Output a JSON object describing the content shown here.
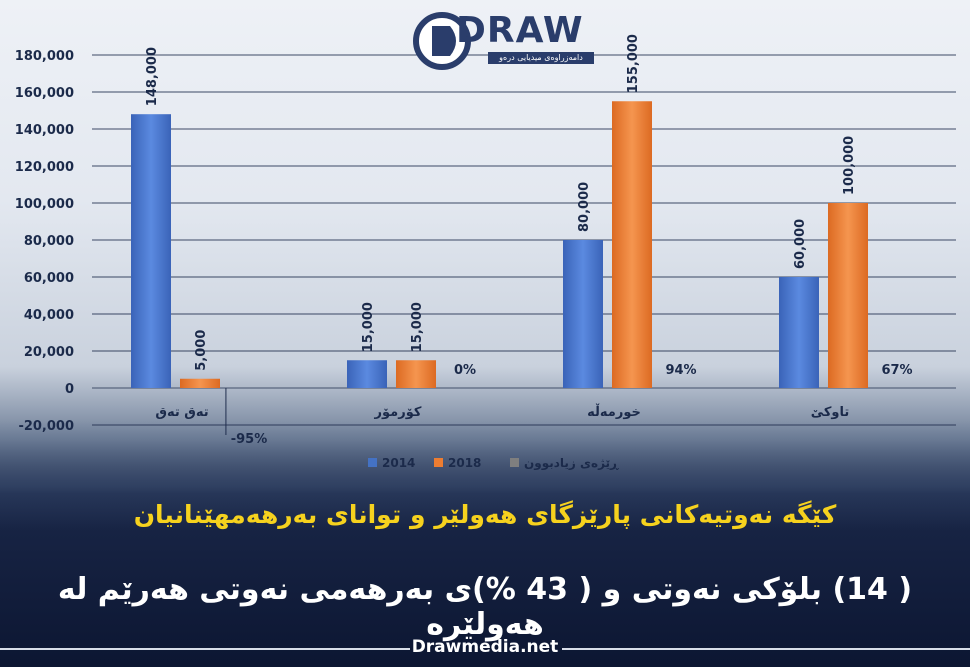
{
  "brand": {
    "logo_text": "DRAW",
    "logo_sub": "دامەزراوەی میدیایی درەو"
  },
  "headline": "کێگە نەوتیەکانی پارێزگای هەولێر و توانای بەرهەمهێنانیان",
  "subheadline": "( 14) بلۆکی نەوتی و ( 43 %)ی بەرهەمی نەوتی هەرێم لە هەولێرە",
  "footer": "Drawmedia.net",
  "colors": {
    "s2014": "#4472c4",
    "s2018": "#ed7d31",
    "s3": "#7f7f7f",
    "headline": "#f6d21e"
  },
  "chart_data": {
    "type": "bar",
    "categories": [
      "تەق تەق",
      "کۆرمۆر",
      "خورمەڵە",
      "تاوکێ"
    ],
    "series": [
      {
        "name": "2014",
        "values": [
          148000,
          15000,
          80000,
          60000
        ],
        "labels": [
          "148,000",
          "15,000",
          "80,000",
          "60,000"
        ]
      },
      {
        "name": "2018",
        "values": [
          5000,
          15000,
          155000,
          100000
        ],
        "labels": [
          "5,000",
          "15,000",
          "155,000",
          "100,000"
        ]
      },
      {
        "name": "ڕێژەی زیادبوون",
        "values": [
          -95,
          0,
          94,
          67
        ],
        "labels": [
          "-95%",
          "0%",
          "94%",
          "67%"
        ]
      }
    ],
    "ylim": [
      -20000,
      180000
    ],
    "yticks": [
      "-20,000",
      "0",
      "20,000",
      "40,000",
      "60,000",
      "80,000",
      "100,000",
      "120,000",
      "140,000",
      "160,000",
      "180,000"
    ],
    "grid": true,
    "legend_position": "bottom"
  }
}
